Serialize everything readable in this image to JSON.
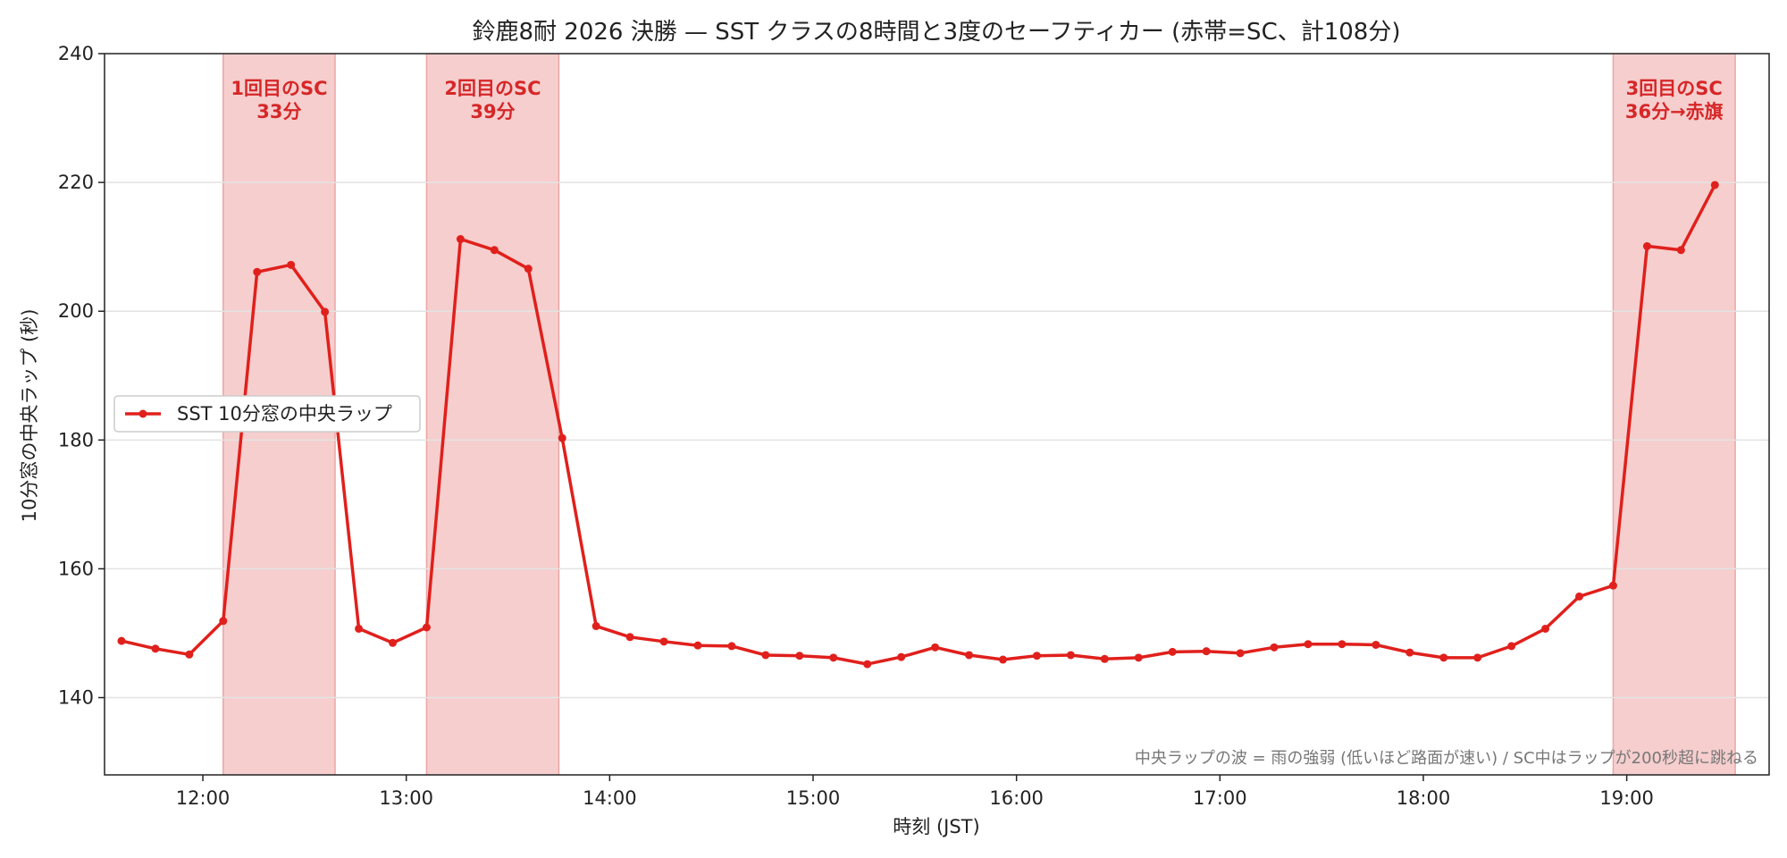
{
  "chart_data": {
    "type": "line",
    "title": "鈴鹿8耐 2026 決勝 — SST クラスの8時間と3度のセーフティカー (赤帯=SC、計108分)",
    "xlabel": "時刻 (JST)",
    "ylabel": "10分窓の中央ラップ (秒)",
    "ylim": [
      128,
      240
    ],
    "yticks": [
      140,
      160,
      180,
      200,
      220,
      240
    ],
    "xlim": [
      "11:31",
      "19:42"
    ],
    "xticks": [
      "12:00",
      "13:00",
      "14:00",
      "15:00",
      "16:00",
      "17:00",
      "18:00",
      "19:00"
    ],
    "grid": "horizontal",
    "legend_position": "center-left",
    "series": [
      {
        "name": "SST 10分窓の中央ラップ",
        "color": "#e0201c",
        "x": [
          "11:36",
          "11:46",
          "11:56",
          "12:06",
          "12:16",
          "12:26",
          "12:36",
          "12:46",
          "12:56",
          "13:06",
          "13:16",
          "13:26",
          "13:36",
          "13:46",
          "13:56",
          "14:06",
          "14:16",
          "14:26",
          "14:36",
          "14:46",
          "14:56",
          "15:06",
          "15:16",
          "15:26",
          "15:36",
          "15:46",
          "15:56",
          "16:06",
          "16:16",
          "16:26",
          "16:36",
          "16:46",
          "16:56",
          "17:06",
          "17:16",
          "17:26",
          "17:36",
          "17:46",
          "17:56",
          "18:06",
          "18:16",
          "18:26",
          "18:36",
          "18:46",
          "18:56",
          "19:06",
          "19:16",
          "19:26"
        ],
        "values": [
          148.8,
          147.6,
          146.7,
          151.9,
          206.1,
          207.2,
          199.9,
          150.7,
          148.5,
          150.9,
          211.2,
          209.5,
          206.6,
          180.3,
          151.1,
          149.4,
          148.7,
          148.1,
          148.0,
          146.6,
          146.5,
          146.2,
          145.2,
          146.3,
          147.8,
          146.6,
          145.9,
          146.5,
          146.6,
          146.0,
          146.2,
          147.1,
          147.2,
          146.9,
          147.8,
          148.3,
          148.3,
          148.2,
          147.0,
          146.2,
          146.2,
          148.0,
          150.7,
          155.7,
          157.4,
          210.1,
          209.5,
          219.6
        ]
      }
    ],
    "safety_car_periods": [
      {
        "start": "12:06",
        "end": "12:39",
        "label_line1": "1回目のSC",
        "label_line2": "33分"
      },
      {
        "start": "13:06",
        "end": "13:45",
        "label_line1": "2回目のSC",
        "label_line2": "39分"
      },
      {
        "start": "18:56",
        "end": "19:32",
        "label_line1": "3回目のSC",
        "label_line2": "36分→赤旗"
      }
    ],
    "annotation": "中央ラップの波 = 雨の強弱 (低いほど路面が速い) / SC中はラップが200秒超に跳ねる",
    "band_color": "#f4c6c6",
    "band_edge_color": "#eba5a5"
  }
}
